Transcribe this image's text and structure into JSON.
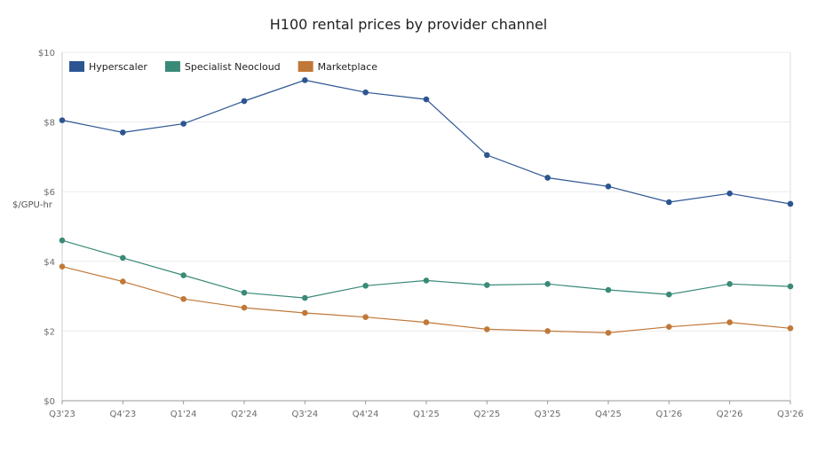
{
  "chart_data": {
    "type": "line",
    "title": "H100 rental prices by provider channel",
    "xlabel": "",
    "ylabel": "$/GPU-hr",
    "categories": [
      "Q3'23",
      "Q4'23",
      "Q1'24",
      "Q2'24",
      "Q3'24",
      "Q4'24",
      "Q1'25",
      "Q2'25",
      "Q3'25",
      "Q4'25",
      "Q1'26",
      "Q2'26",
      "Q3'26"
    ],
    "ylim": [
      0,
      10
    ],
    "yticks": [
      0,
      2,
      4,
      6,
      8,
      10
    ],
    "ytick_labels": [
      "$0",
      "$2",
      "$4",
      "$6",
      "$8",
      "$10"
    ],
    "grid": true,
    "legend_position": "top-left",
    "series": [
      {
        "name": "Hyperscaler",
        "color": "#2c5592",
        "values": [
          8.05,
          7.7,
          7.95,
          8.6,
          9.2,
          8.85,
          8.65,
          7.05,
          6.4,
          6.15,
          5.7,
          5.95,
          5.65
        ]
      },
      {
        "name": "Specialist Neocloud",
        "color": "#3a8a78",
        "values": [
          4.6,
          4.1,
          3.6,
          3.1,
          2.95,
          3.3,
          3.45,
          3.32,
          3.35,
          3.18,
          3.05,
          3.35,
          3.28
        ]
      },
      {
        "name": "Marketplace",
        "color": "#c07838",
        "values": [
          3.85,
          3.42,
          2.92,
          2.67,
          2.52,
          2.4,
          2.25,
          2.05,
          2.0,
          1.95,
          2.12,
          2.25,
          2.08
        ]
      }
    ]
  }
}
